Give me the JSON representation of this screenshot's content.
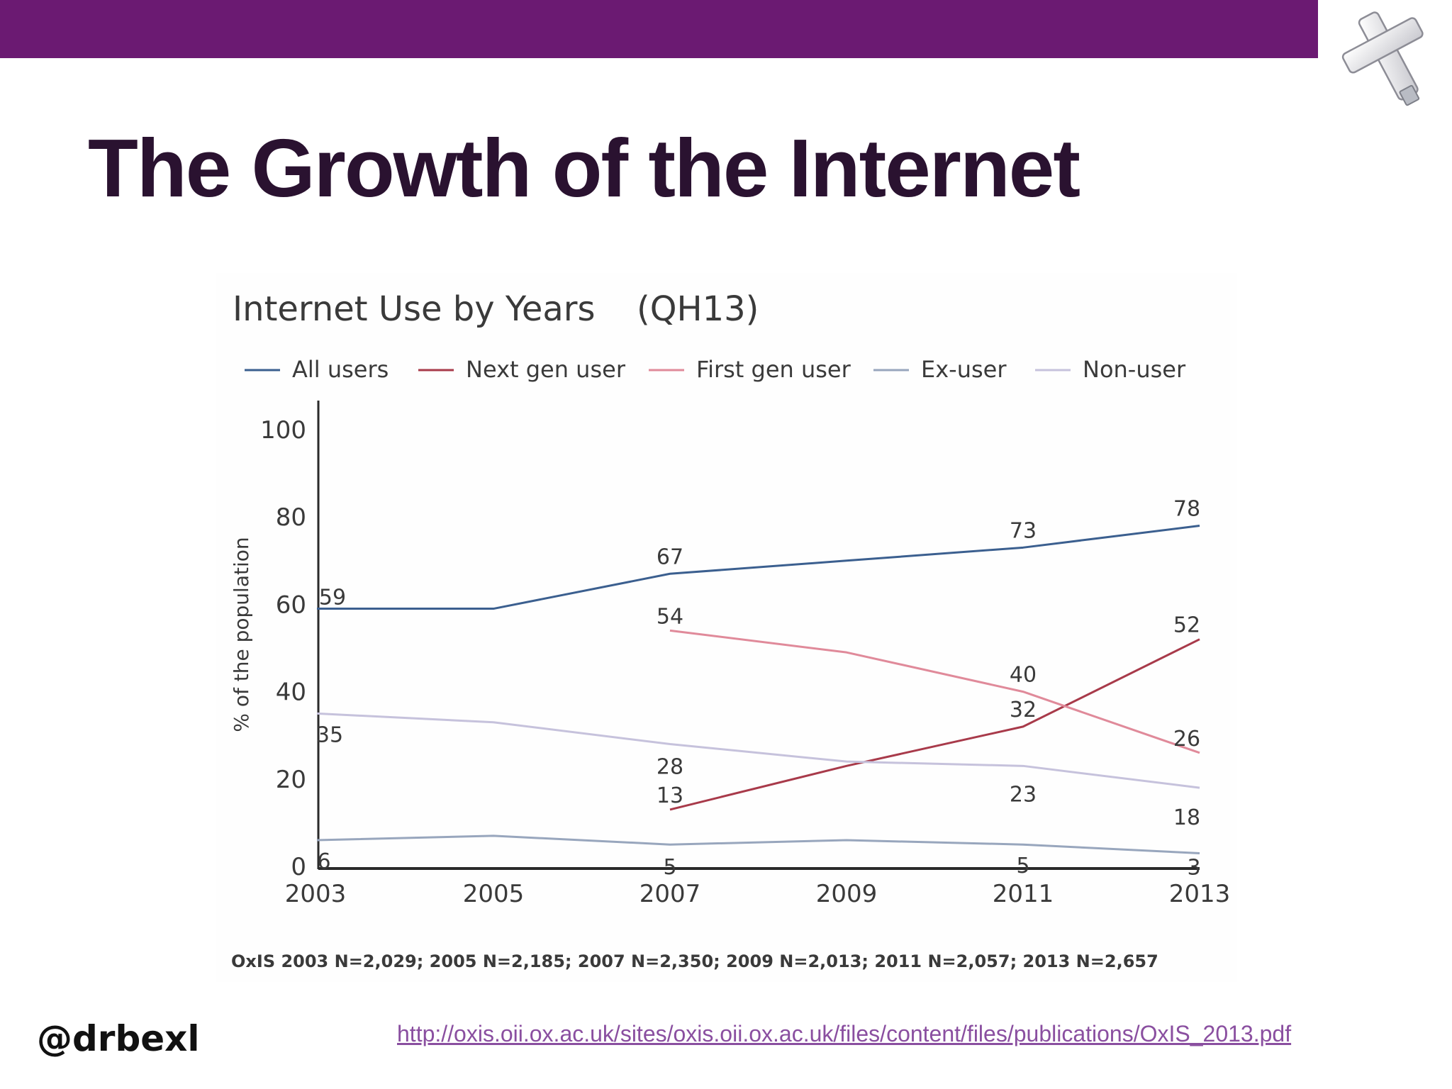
{
  "slide": {
    "title": "The Growth of the Internet",
    "handle": "@drbexl",
    "source_url": "http://oxis.oii.ox.ac.uk/sites/oxis.oii.ox.ac.uk/files/content/files/publications/OxIS_2013.pdf",
    "band_color": "#6b1a72",
    "logo_icon": "cross-usb-logo-icon"
  },
  "chart_data": {
    "type": "line",
    "title": "Internet Use by Years",
    "title_code": "(QH13)",
    "note": "OxIS 2003 N=2,029; 2005 N=2,185; 2007 N=2,350; 2009 N=2,013; 2011 N=2,057; 2013 N=2,657",
    "xlabel": "",
    "ylabel": "% of the population",
    "x": [
      "2003",
      "2005",
      "2007",
      "2009",
      "2011",
      "2013"
    ],
    "y_ticks": [
      "0",
      "20",
      "40",
      "60",
      "80",
      "100"
    ],
    "ylim": [
      0,
      100
    ],
    "grid": false,
    "legend_position": "top",
    "series": [
      {
        "name": "All users",
        "color": "#3b5f8f",
        "values": [
          59,
          59,
          67,
          70,
          73,
          78
        ],
        "labels": [
          "59",
          null,
          "67",
          null,
          "73",
          "78"
        ]
      },
      {
        "name": "Next gen user",
        "color": "#a83a4a",
        "values": [
          null,
          null,
          13,
          23,
          32,
          52
        ],
        "labels": [
          null,
          null,
          "13",
          null,
          "32",
          "52"
        ]
      },
      {
        "name": "First gen user",
        "color": "#e08a9a",
        "values": [
          null,
          null,
          54,
          49,
          40,
          26
        ],
        "labels": [
          null,
          null,
          "54",
          null,
          "40",
          "26"
        ]
      },
      {
        "name": "Ex-user",
        "color": "#98a6bd",
        "values": [
          6,
          7,
          5,
          6,
          5,
          3
        ],
        "labels": [
          "6",
          null,
          "5",
          null,
          "5",
          "3"
        ]
      },
      {
        "name": "Non-user",
        "color": "#c6c2dc",
        "values": [
          35,
          33,
          28,
          24,
          23,
          18
        ],
        "labels": [
          "35",
          null,
          "28",
          null,
          "23",
          "18"
        ]
      }
    ]
  }
}
